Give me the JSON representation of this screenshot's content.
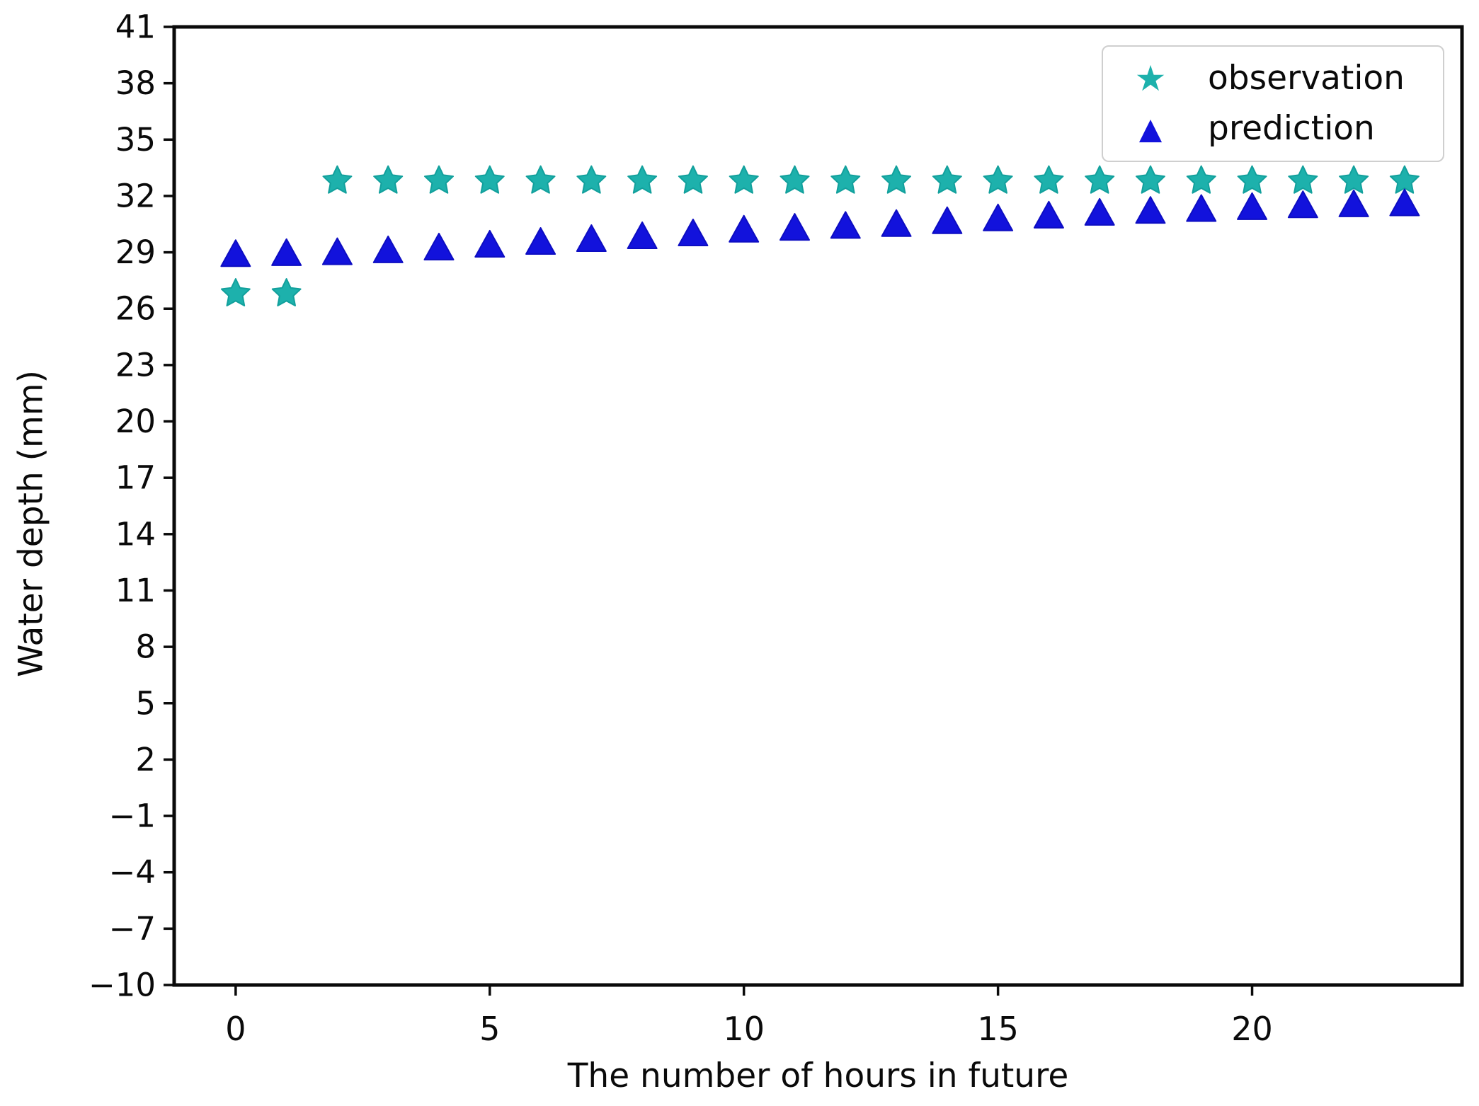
{
  "chart_data": {
    "type": "scatter",
    "title": "",
    "xlabel": "The number of hours in future",
    "ylabel": "Water depth (mm)",
    "xlim": [
      -1.21,
      24.13
    ],
    "ylim": [
      -10,
      41
    ],
    "xticks": [
      0,
      5,
      10,
      15,
      20
    ],
    "yticks": [
      41,
      38,
      35,
      32,
      29,
      26,
      23,
      20,
      17,
      14,
      11,
      8,
      5,
      2,
      -1,
      -4,
      -7,
      -10
    ],
    "grid": false,
    "legend_position": "upper right",
    "x": [
      0,
      1,
      2,
      3,
      4,
      5,
      6,
      7,
      8,
      9,
      10,
      11,
      12,
      13,
      14,
      15,
      16,
      17,
      18,
      19,
      20,
      21,
      22,
      23
    ],
    "series": [
      {
        "name": "observation",
        "marker": "star",
        "color": "#1db1ac",
        "edge_color": "#12a09c",
        "values": [
          26.8,
          26.8,
          32.8,
          32.8,
          32.8,
          32.8,
          32.8,
          32.8,
          32.8,
          32.8,
          32.8,
          32.8,
          32.8,
          32.8,
          32.8,
          32.8,
          32.8,
          32.8,
          32.8,
          32.8,
          32.8,
          32.8,
          32.8,
          32.8
        ]
      },
      {
        "name": "prediction",
        "marker": "triangle-up",
        "color": "#1212dc",
        "edge_color": "#0d0dc2",
        "values": [
          28.9,
          28.95,
          29.0,
          29.1,
          29.25,
          29.4,
          29.55,
          29.7,
          29.85,
          30.0,
          30.2,
          30.3,
          30.4,
          30.5,
          30.65,
          30.8,
          30.95,
          31.1,
          31.2,
          31.3,
          31.4,
          31.5,
          31.55,
          31.6
        ]
      }
    ],
    "axis_color": "#0a0a0a",
    "background_color": "#ffffff"
  }
}
